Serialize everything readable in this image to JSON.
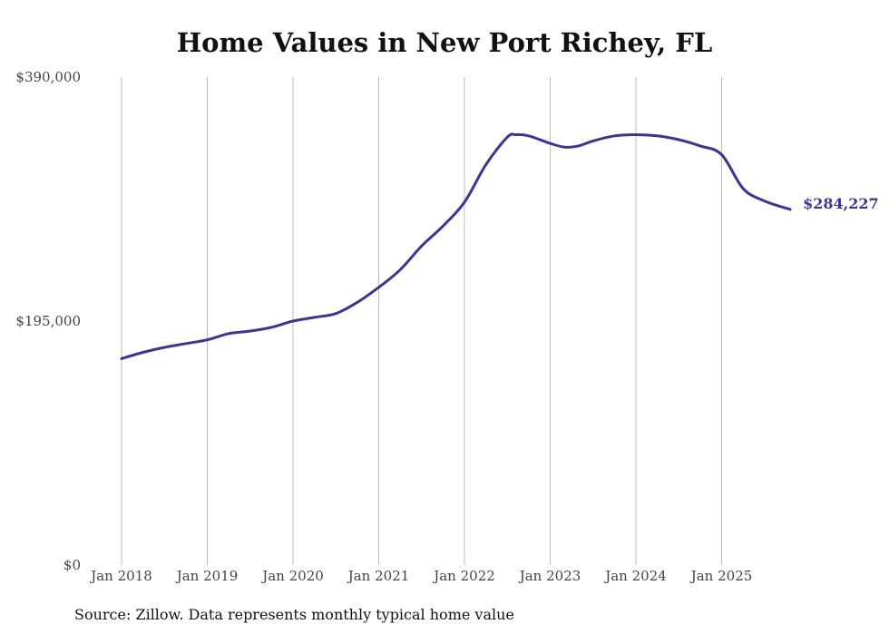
{
  "chart_data": {
    "type": "line",
    "title": "Home Values in New Port Richey, FL",
    "xlabel": "",
    "ylabel": "",
    "ylim": [
      0,
      390000
    ],
    "yticks": [
      {
        "value": 0,
        "label": "$0"
      },
      {
        "value": 195000,
        "label": "$195,000"
      },
      {
        "value": 390000,
        "label": "$390,000"
      }
    ],
    "xlim": [
      2018.0,
      2026.0
    ],
    "xticks": [
      {
        "value": 2018.0,
        "label": "Jan 2018"
      },
      {
        "value": 2019.0,
        "label": "Jan 2019"
      },
      {
        "value": 2020.0,
        "label": "Jan 2020"
      },
      {
        "value": 2021.0,
        "label": "Jan 2021"
      },
      {
        "value": 2022.0,
        "label": "Jan 2022"
      },
      {
        "value": 2023.0,
        "label": "Jan 2023"
      },
      {
        "value": 2024.0,
        "label": "Jan 2024"
      },
      {
        "value": 2025.0,
        "label": "Jan 2025"
      }
    ],
    "grid": "vertical",
    "series": [
      {
        "name": "Typical home value",
        "color": "#3d3590",
        "x": [
          2018.0,
          2018.25,
          2018.5,
          2018.75,
          2019.0,
          2019.25,
          2019.5,
          2019.75,
          2020.0,
          2020.25,
          2020.5,
          2020.75,
          2021.0,
          2021.25,
          2021.5,
          2021.75,
          2022.0,
          2022.25,
          2022.5,
          2022.6,
          2022.75,
          2023.0,
          2023.17,
          2023.33,
          2023.5,
          2023.75,
          2024.0,
          2024.25,
          2024.5,
          2024.75,
          2025.0,
          2025.25,
          2025.5,
          2025.8
        ],
        "y": [
          165000,
          170000,
          174000,
          177000,
          180000,
          185000,
          187000,
          190000,
          195000,
          198000,
          201000,
          210000,
          222000,
          236000,
          255000,
          271000,
          290000,
          320000,
          342000,
          344000,
          343000,
          337000,
          334000,
          335000,
          339000,
          343000,
          344000,
          343000,
          340000,
          335000,
          328000,
          301000,
          291000,
          284227
        ]
      }
    ],
    "end_label": "$284,227",
    "source": "Source: Zillow. Data represents monthly typical home value"
  }
}
